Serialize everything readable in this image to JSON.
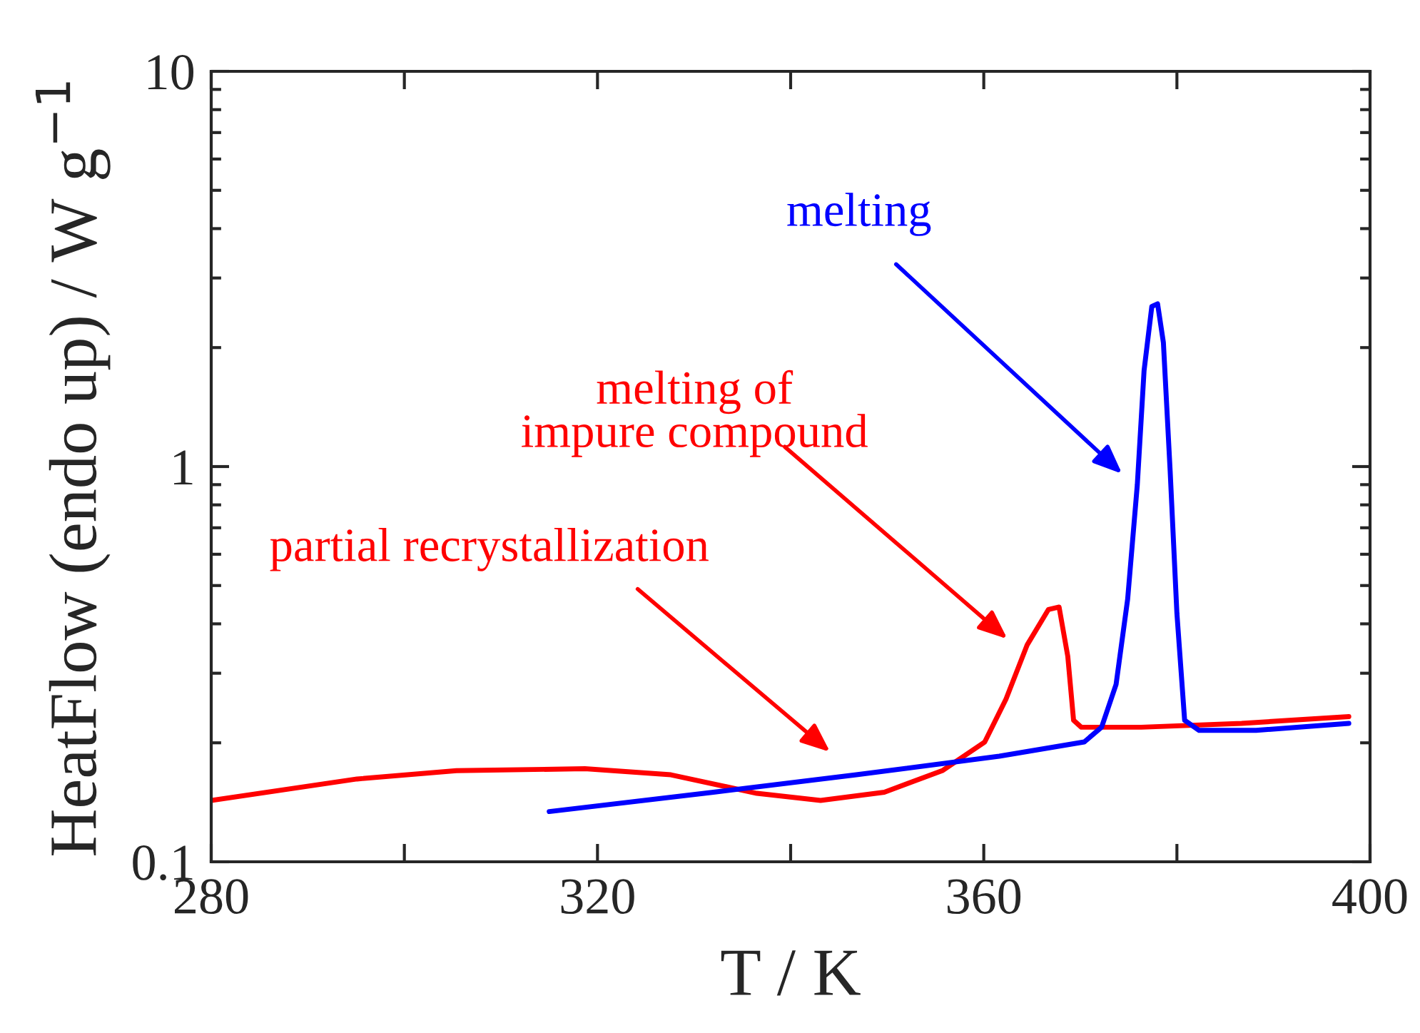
{
  "chart_data": {
    "type": "line",
    "xlabel": "T / K",
    "ylabel": "HeatFlow (endo up) / W g$^{−1}$",
    "log": true,
    "grid": false,
    "legend": false,
    "xlim": [
      280,
      400
    ],
    "xticks": [
      280,
      {
        "value": 300,
        "label": null
      },
      320,
      {
        "value": 340,
        "label": null
      },
      360,
      {
        "value": 380,
        "label": null
      },
      400
    ],
    "ylim": [
      0.1,
      10
    ],
    "yticks": [
      0.1,
      1,
      10
    ],
    "series": [
      {
        "color": "#ff0000",
        "x": [
          280,
          295.1,
          305.4,
          318.7,
          327.6,
          336.5,
          343.1,
          349.7,
          355.7,
          360.1,
          362.3,
          364.5,
          366.7,
          367.8,
          368.7,
          369.3,
          370.1,
          376.3,
          386.7,
          397.8
        ],
        "values": [
          0.143,
          0.162,
          0.17,
          0.172,
          0.166,
          0.149,
          0.143,
          0.15,
          0.17,
          0.201,
          0.258,
          0.354,
          0.435,
          0.441,
          0.331,
          0.228,
          0.219,
          0.219,
          0.224,
          0.233
        ]
      },
      {
        "color": "#0000ff",
        "x": [
          315.0,
          332.0,
          346.8,
          361.6,
          370.4,
          372.2,
          373.7,
          374.9,
          375.9,
          376.6,
          377.4,
          378.0,
          378.6,
          379.3,
          380.0,
          380.8,
          382.3,
          388.2,
          397.8
        ],
        "values": [
          0.134,
          0.15,
          0.166,
          0.185,
          0.201,
          0.219,
          0.281,
          0.462,
          0.9,
          1.75,
          2.54,
          2.58,
          2.06,
          0.975,
          0.425,
          0.228,
          0.215,
          0.215,
          0.224
        ]
      }
    ],
    "annotations": [
      "melting",
      "melting of\nimpure compound",
      "partial recrystallization"
    ]
  }
}
